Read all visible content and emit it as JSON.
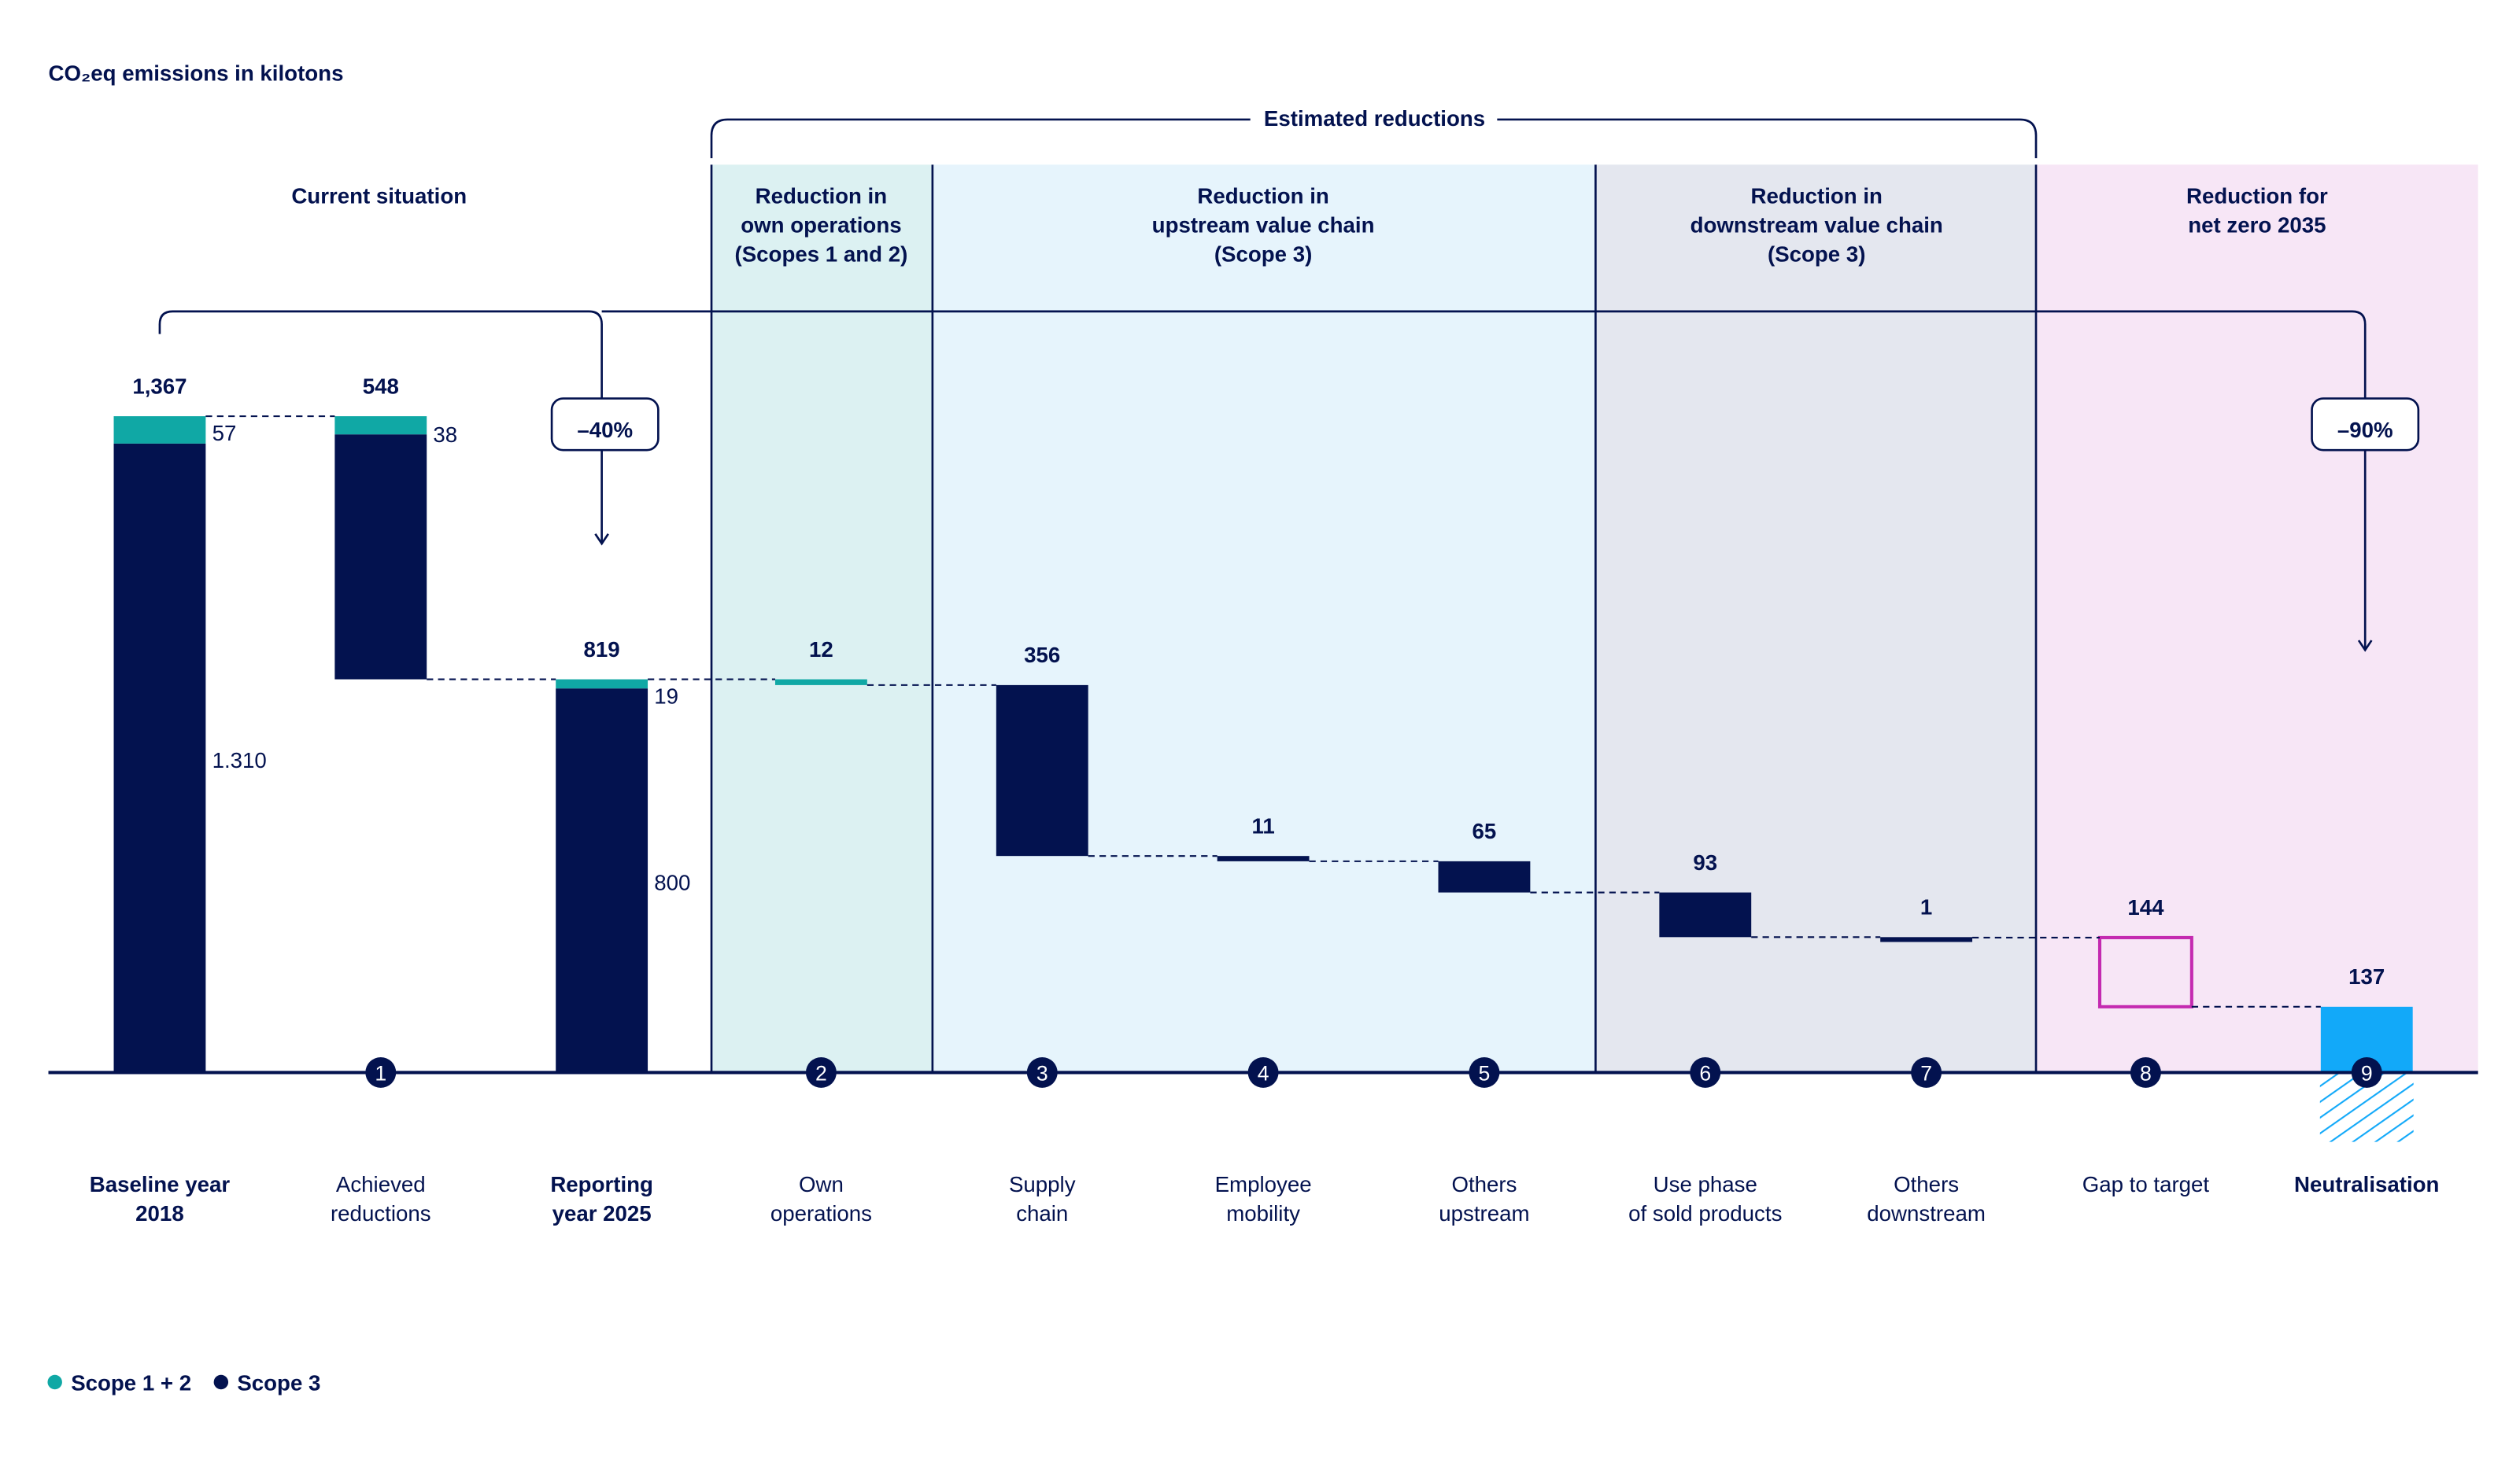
{
  "chart_data": {
    "type": "waterfall",
    "title": "CO₂eq emissions in kilotons",
    "unit": "kilotons CO2eq",
    "groups": {
      "estimated": "Estimated reductions",
      "current": "Current situation",
      "own_ops": [
        "Reduction in",
        "own operations",
        "(Scopes 1 and 2)"
      ],
      "upstream": [
        "Reduction in",
        "upstream value chain",
        "(Scope 3)"
      ],
      "downstream": [
        "Reduction in",
        "downstream value chain",
        "(Scope 3)"
      ],
      "netzero": [
        "Reduction for",
        "net zero 2035"
      ]
    },
    "badges": {
      "reporting": "–40%",
      "netzero": "–90%"
    },
    "categories": [
      {
        "num": "",
        "label": [
          "Baseline year",
          "2018"
        ],
        "bold": true,
        "kind": "total",
        "value": 1367,
        "value_label": "1,367",
        "scope12": 57,
        "scope3": 1310,
        "scope12_label": "57",
        "scope3_label": "1.310"
      },
      {
        "num": "1",
        "label": [
          "Achieved",
          "reductions"
        ],
        "kind": "reduction",
        "value": 548,
        "value_label": "548",
        "scope12": 38,
        "scope12_label": "38"
      },
      {
        "num": "",
        "label": [
          "Reporting",
          "year 2025"
        ],
        "bold": true,
        "kind": "total",
        "value": 819,
        "value_label": "819",
        "scope12": 19,
        "scope3": 800,
        "scope12_label": "19",
        "scope3_label": "800"
      },
      {
        "num": "2",
        "label": [
          "Own",
          "operations"
        ],
        "kind": "reduction",
        "color": "teal",
        "value": 12,
        "value_label": "12"
      },
      {
        "num": "3",
        "label": [
          "Supply",
          "chain"
        ],
        "kind": "reduction",
        "value": 356,
        "value_label": "356"
      },
      {
        "num": "4",
        "label": [
          "Employee",
          "mobility"
        ],
        "kind": "reduction",
        "value": 11,
        "value_label": "11"
      },
      {
        "num": "5",
        "label": [
          "Others",
          "upstream"
        ],
        "kind": "reduction",
        "value": 65,
        "value_label": "65"
      },
      {
        "num": "6",
        "label": [
          "Use phase",
          "of sold products"
        ],
        "kind": "reduction",
        "value": 93,
        "value_label": "93"
      },
      {
        "num": "7",
        "label": [
          "Others",
          "downstream"
        ],
        "kind": "reduction",
        "value": 1,
        "value_label": "1"
      },
      {
        "num": "8",
        "label": [
          "Gap to target"
        ],
        "kind": "gap",
        "value": 144,
        "value_label": "144"
      },
      {
        "num": "9",
        "label": [
          "Neutralisation"
        ],
        "bold": true,
        "kind": "neutral",
        "value": 137,
        "value_label": "137"
      }
    ],
    "legend": [
      {
        "name": "Scope 1 + 2",
        "color": "#10A8A5"
      },
      {
        "name": "Scope 3",
        "color": "#03124F"
      }
    ],
    "colors": {
      "navy": "#03124F",
      "teal": "#10A8A5",
      "blue": "#12A9F9",
      "magenta": "#C42AB0"
    }
  }
}
